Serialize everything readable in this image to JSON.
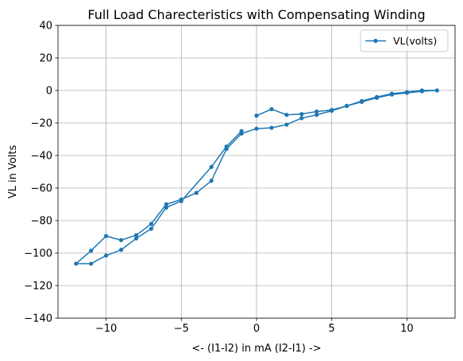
{
  "chart_data": {
    "type": "line",
    "title": "Full Load Charecteristics with Compensating Winding",
    "xlabel": "<- (I1-I2) in mA (I2-I1) ->",
    "ylabel": "VL in Volts",
    "xlim": [
      -13.2,
      13.2
    ],
    "ylim": [
      -140,
      40
    ],
    "xticks": [
      -10,
      -5,
      0,
      5,
      10
    ],
    "xtick_labels": [
      "−10",
      "−5",
      "0",
      "5",
      "10"
    ],
    "yticks": [
      -140,
      -120,
      -100,
      -80,
      -60,
      -40,
      -20,
      0,
      20,
      40
    ],
    "ytick_labels": [
      "−140",
      "−120",
      "−100",
      "−80",
      "−60",
      "−40",
      "−20",
      "0",
      "20",
      "40"
    ],
    "grid": true,
    "legend_position": "upper right",
    "series": [
      {
        "name": "VL(volts)",
        "color": "#1f77b4",
        "marker": "point",
        "x": [
          0,
          1,
          2,
          3,
          4,
          5,
          6,
          7,
          8,
          9,
          10,
          11,
          12,
          11,
          10,
          9,
          8,
          7,
          6,
          5,
          4,
          3,
          2,
          1,
          0,
          -1,
          -2,
          -3,
          -4,
          -5,
          -6,
          -7,
          -8,
          -9,
          -10,
          -11,
          -12,
          -11,
          -10,
          -9,
          -8,
          -7,
          -6,
          -5,
          -3,
          -2,
          -1
        ],
        "y": [
          -15.5,
          -11.5,
          -15,
          -14.5,
          -13,
          -12,
          -9.5,
          -6.5,
          -4,
          -2,
          -1,
          0,
          0,
          -0.5,
          -1.5,
          -2.5,
          -4.5,
          -7,
          -9.5,
          -12.5,
          -15,
          -17,
          -21,
          -23,
          -23.5,
          -26.5,
          -36,
          -55.5,
          -63,
          -67,
          -70,
          -82,
          -89,
          -92,
          -89.5,
          -98.5,
          -106.5,
          -106.5,
          -101.5,
          -98,
          -91,
          -85,
          -72,
          -68,
          -47,
          -34.5,
          -25
        ]
      }
    ]
  }
}
